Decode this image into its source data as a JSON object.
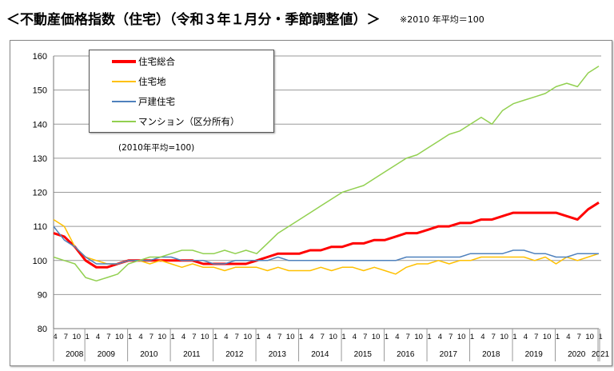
{
  "title": "＜不動産価格指数（住宅）（令和３年１月分・季節調整値）＞",
  "note": "※2010 年平均＝100",
  "chart_data": {
    "type": "line",
    "subtitle": "(2010年平均=100)",
    "ylim": [
      80,
      160
    ],
    "yticks": [
      80,
      90,
      100,
      110,
      120,
      130,
      140,
      150,
      160
    ],
    "grid": true,
    "legend_placement": "top-left",
    "x_start": "2008-04",
    "x_end": "2021-01",
    "x_interval": "quarterly",
    "years": [
      "2008",
      "2009",
      "2010",
      "2011",
      "2012",
      "2013",
      "2014",
      "2015",
      "2016",
      "2017",
      "2018",
      "2019",
      "2020",
      "2021"
    ],
    "month_ticks": [
      "1",
      "4",
      "7",
      "10"
    ],
    "series": [
      {
        "name": "住宅総合",
        "color": "#ff0000",
        "width": 3,
        "values": [
          108,
          107,
          104,
          100,
          98,
          98,
          99,
          100,
          100,
          100,
          100,
          100,
          100,
          100,
          99,
          99,
          99,
          99,
          99,
          100,
          101,
          102,
          102,
          102,
          103,
          103,
          104,
          104,
          105,
          105,
          106,
          106,
          107,
          108,
          108,
          109,
          110,
          110,
          111,
          111,
          112,
          112,
          113,
          114,
          114,
          114,
          114,
          114,
          113,
          112,
          115,
          117
        ]
      },
      {
        "name": "住宅地",
        "color": "#ffc000",
        "width": 1.5,
        "values": [
          112,
          110,
          104,
          101,
          100,
          99,
          99,
          100,
          100,
          99,
          100,
          99,
          98,
          99,
          98,
          98,
          97,
          98,
          98,
          98,
          97,
          98,
          97,
          97,
          97,
          98,
          97,
          98,
          98,
          97,
          98,
          97,
          96,
          98,
          99,
          99,
          100,
          99,
          100,
          100,
          101,
          101,
          101,
          101,
          101,
          100,
          101,
          99,
          101,
          100,
          101,
          102
        ]
      },
      {
        "name": "戸建住宅",
        "color": "#4f81bd",
        "width": 1.5,
        "values": [
          110,
          106,
          104,
          101,
          99,
          99,
          99,
          100,
          100,
          100,
          101,
          101,
          100,
          100,
          100,
          99,
          99,
          100,
          100,
          100,
          100,
          101,
          100,
          100,
          100,
          100,
          100,
          100,
          100,
          100,
          100,
          100,
          100,
          101,
          101,
          101,
          101,
          101,
          101,
          102,
          102,
          102,
          102,
          103,
          103,
          102,
          102,
          101,
          101,
          102,
          102,
          102
        ]
      },
      {
        "name": "マンション（区分所有）",
        "color": "#92d050",
        "width": 1.5,
        "values": [
          101,
          100,
          99,
          95,
          94,
          95,
          96,
          99,
          100,
          101,
          101,
          102,
          103,
          103,
          102,
          102,
          103,
          102,
          103,
          102,
          105,
          108,
          110,
          112,
          114,
          116,
          118,
          120,
          121,
          122,
          124,
          126,
          128,
          130,
          131,
          133,
          135,
          137,
          138,
          140,
          142,
          140,
          144,
          146,
          147,
          148,
          149,
          151,
          152,
          151,
          155,
          157
        ]
      }
    ]
  }
}
